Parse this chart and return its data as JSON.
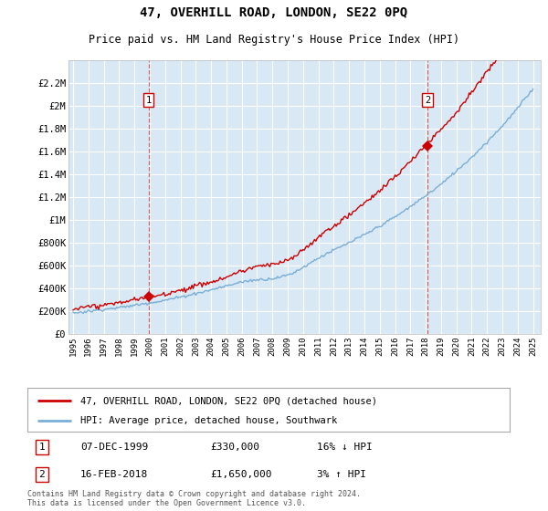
{
  "title": "47, OVERHILL ROAD, LONDON, SE22 0PQ",
  "subtitle": "Price paid vs. HM Land Registry's House Price Index (HPI)",
  "red_label": "47, OVERHILL ROAD, LONDON, SE22 0PQ (detached house)",
  "blue_label": "HPI: Average price, detached house, Southwark",
  "transaction1_date": "07-DEC-1999",
  "transaction1_price": "£330,000",
  "transaction1_hpi": "16% ↓ HPI",
  "transaction2_date": "16-FEB-2018",
  "transaction2_price": "£1,650,000",
  "transaction2_hpi": "3% ↑ HPI",
  "footer": "Contains HM Land Registry data © Crown copyright and database right 2024.\nThis data is licensed under the Open Government Licence v3.0.",
  "bg_color": "#d9e8f5",
  "ylim_min": 0,
  "ylim_max": 2400000,
  "yticks": [
    0,
    200000,
    400000,
    600000,
    800000,
    1000000,
    1200000,
    1400000,
    1600000,
    1800000,
    2000000,
    2200000
  ],
  "ytick_labels": [
    "£0",
    "£200K",
    "£400K",
    "£600K",
    "£800K",
    "£1M",
    "£1.2M",
    "£1.4M",
    "£1.6M",
    "£1.8M",
    "£2M",
    "£2.2M"
  ],
  "transaction1_year": 1999.92,
  "transaction1_value": 330000,
  "transaction2_year": 2018.12,
  "transaction2_value": 1650000,
  "red_color": "#cc0000",
  "blue_color": "#7aaed6",
  "dashed_color": "#cc4444"
}
